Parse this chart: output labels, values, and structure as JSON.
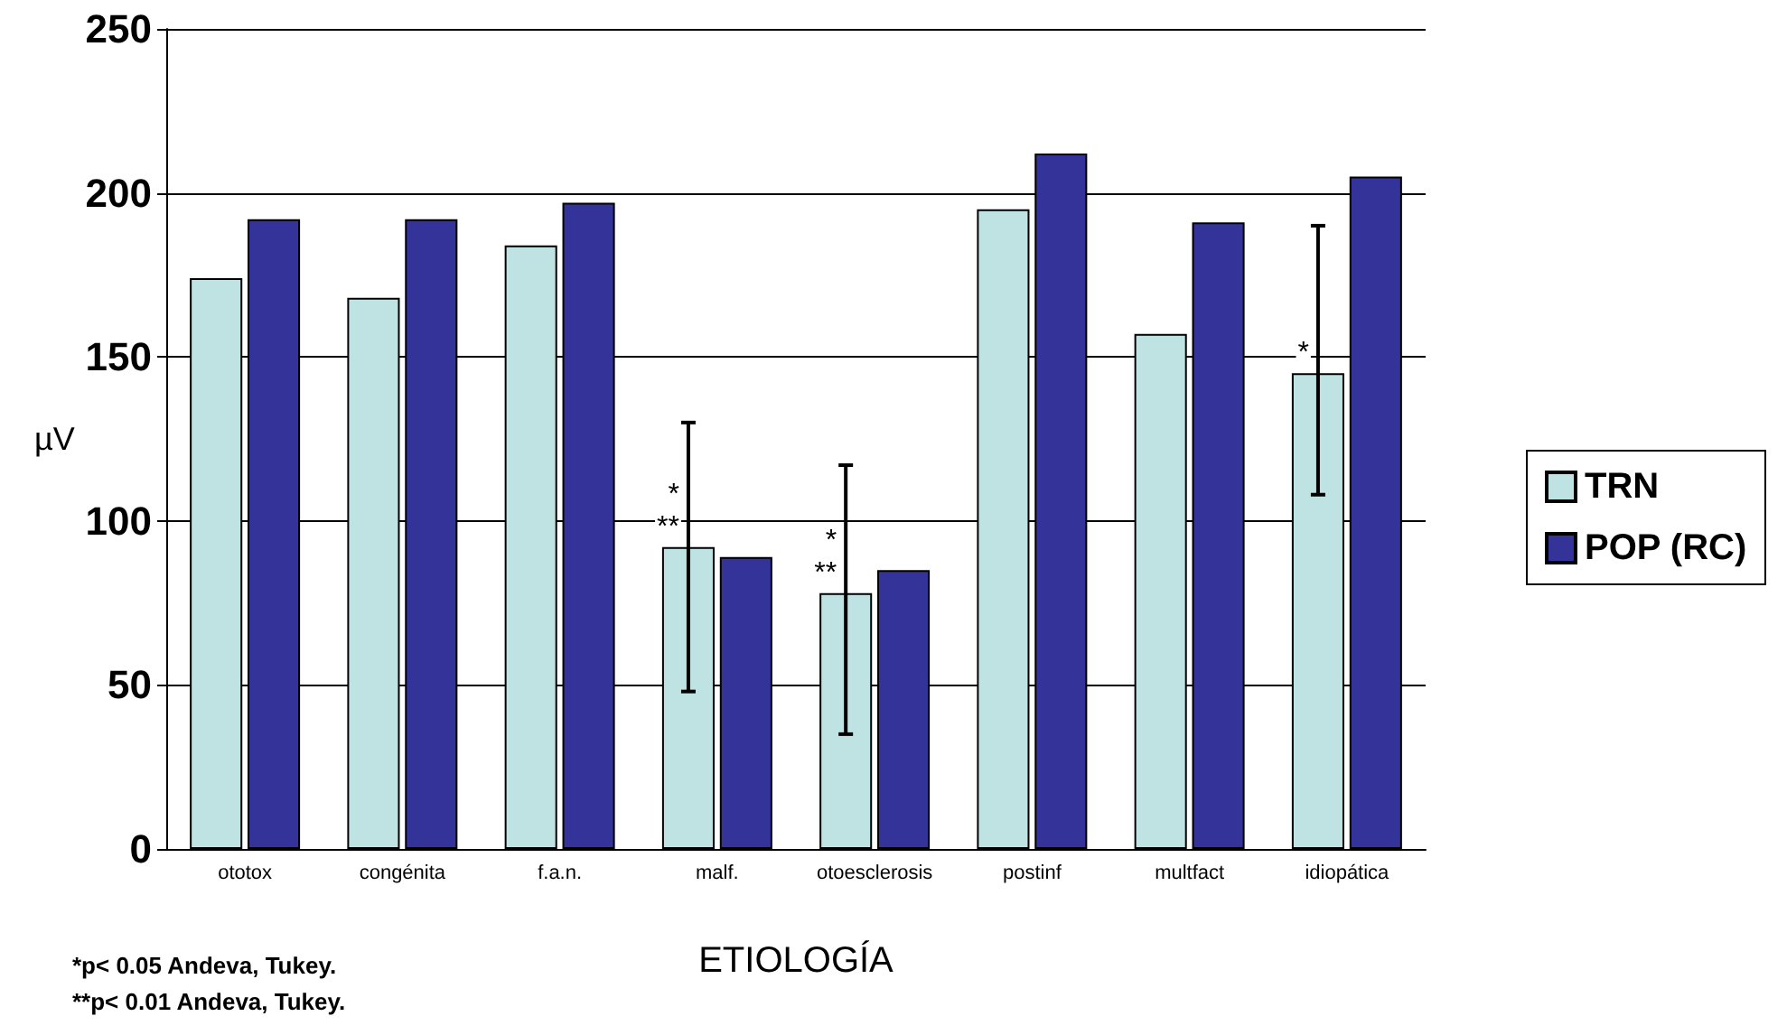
{
  "chart_data": {
    "type": "bar",
    "xlabel": "ETIOLOGÍA",
    "ylabel": "µV",
    "categories": [
      "ototox",
      "congénita",
      "f.a.n.",
      "malf.",
      "otoesclerosis",
      "postinf",
      "multfact",
      "idiopática"
    ],
    "series": [
      {
        "name": "TRN",
        "color": "#bfe3e3",
        "values": [
          174,
          168,
          184,
          92,
          78,
          195,
          157,
          145
        ],
        "errors": [
          null,
          null,
          null,
          [
            48,
            130
          ],
          [
            35,
            117
          ],
          null,
          null,
          [
            108,
            190
          ]
        ],
        "value_labels": [
          null,
          null,
          null,
          "*\n**",
          "*\n**",
          null,
          null,
          "*"
        ]
      },
      {
        "name": "POP (RC)",
        "color": "#333399",
        "values": [
          192,
          192,
          197,
          89,
          85,
          212,
          191,
          205
        ]
      }
    ],
    "ylim": [
      0,
      250
    ],
    "yticks": [
      0,
      50,
      100,
      150,
      200,
      250
    ],
    "grid": "y",
    "legend": "right",
    "annotations": [
      "*p< 0.05 Andeva, Tukey.",
      "**p< 0.01 Andeva, Tukey."
    ]
  }
}
